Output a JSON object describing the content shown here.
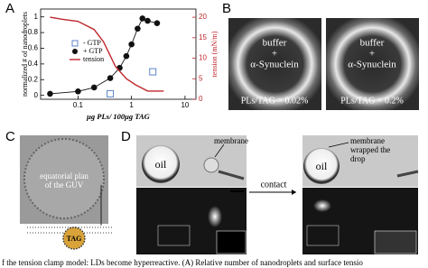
{
  "panel_labels": [
    "A",
    "B",
    "C",
    "D"
  ],
  "chart_data": {
    "type": "line",
    "x_label": "μg PLs/ 100μg TAG",
    "y_label": "normalized # of nanodroplets",
    "y2_label": "tension (mN/m)",
    "xscale": "log",
    "xlim": [
      0.02,
      16
    ],
    "xticks": [
      0.1,
      1,
      10
    ],
    "ylim": [
      -0.05,
      1.1
    ],
    "yticks": [
      0,
      0.2,
      0.4,
      0.6,
      0.8,
      1
    ],
    "y2lim": [
      0,
      22
    ],
    "y2ticks": [
      0,
      5,
      10,
      15,
      20
    ],
    "y2_color": "#c0262c",
    "legend": "center left",
    "series": [
      {
        "name": "- GTP",
        "color": "#5b86c8",
        "marker": "square",
        "line": false,
        "x": [
          0.4,
          2.5
        ],
        "values": [
          0.02,
          0.3
        ]
      },
      {
        "name": "+ GTP",
        "color": "#111111",
        "marker": "circle",
        "line": true,
        "x": [
          0.03,
          0.1,
          0.2,
          0.4,
          0.6,
          0.8,
          1.0,
          1.3,
          1.6,
          2,
          3
        ],
        "values": [
          0.02,
          0.05,
          0.1,
          0.22,
          0.35,
          0.5,
          0.65,
          0.85,
          0.98,
          0.95,
          0.92
        ]
      },
      {
        "name": "tension",
        "color": "#c0262c",
        "marker": null,
        "line": true,
        "axis": "y2",
        "x": [
          0.03,
          0.05,
          0.1,
          0.2,
          0.3,
          0.5,
          0.8,
          1.2,
          2,
          3,
          4
        ],
        "values": [
          20,
          19.5,
          19,
          17,
          14,
          8,
          5,
          3.5,
          2,
          2,
          2
        ]
      }
    ]
  },
  "panel_b": {
    "images": [
      {
        "lines": [
          "buffer",
          "+",
          "α-Synuclein"
        ],
        "ratio": "PLs/TAG = 0.02%"
      },
      {
        "lines": [
          "buffer",
          "+",
          "α-Synuclein"
        ],
        "ratio": "PLs/TAG = 0.2%"
      }
    ]
  },
  "panel_c": {
    "annotation": [
      "equatorial plan",
      "of the GUV"
    ],
    "droplet": "TAG"
  },
  "panel_d": {
    "oil_left": "oil",
    "membrane": "membrane",
    "arrow": "contact",
    "oil_right": "oil",
    "wrapped": [
      "membrane",
      "wrapped the",
      "drop"
    ]
  },
  "caption": "f the tension clamp model: LDs become hyperreactive. (A) Relative number of nanodroplets and surface tensio"
}
